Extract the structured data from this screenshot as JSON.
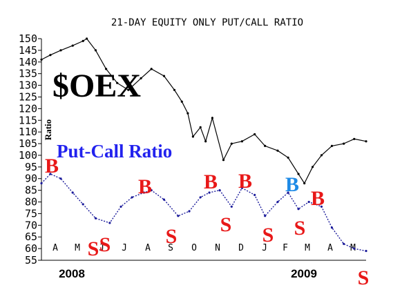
{
  "chart_data": {
    "type": "line",
    "title": "21-DAY EQUITY ONLY PUT/CALL RATIO",
    "ylabel": "Ratio",
    "ylim": [
      55,
      150
    ],
    "yticks": [
      150,
      145,
      140,
      135,
      130,
      125,
      120,
      115,
      110,
      105,
      100,
      95,
      90,
      85,
      80,
      75,
      70,
      65,
      60,
      55
    ],
    "month_labels": [
      "A",
      "M",
      "J",
      "J",
      "A",
      "S",
      "O",
      "N",
      "D",
      "J",
      "F",
      "M",
      "A",
      "M"
    ],
    "year_labels": [
      "2008",
      "2009"
    ],
    "x_range": [
      "2008-03-20",
      "2009-05-31"
    ],
    "series": [
      {
        "name": "$OEX",
        "color": "#000000",
        "x": [
          "2008-03-20",
          "2008-04-01",
          "2008-04-15",
          "2008-05-01",
          "2008-05-15",
          "2008-05-20",
          "2008-06-01",
          "2008-06-15",
          "2008-06-30",
          "2008-07-15",
          "2008-08-01",
          "2008-08-15",
          "2008-09-01",
          "2008-09-15",
          "2008-09-25",
          "2008-10-03",
          "2008-10-10",
          "2008-10-20",
          "2008-10-27",
          "2008-11-05",
          "2008-11-20",
          "2008-12-01",
          "2008-12-15",
          "2009-01-01",
          "2009-01-15",
          "2009-02-01",
          "2009-02-15",
          "2009-03-01",
          "2009-03-09",
          "2009-03-20",
          "2009-04-01",
          "2009-04-15",
          "2009-05-01",
          "2009-05-15",
          "2009-05-31"
        ],
        "values": [
          141,
          143,
          145,
          147,
          149,
          150,
          145,
          137,
          131,
          128,
          133,
          137,
          134,
          128,
          123,
          118,
          108,
          112,
          106,
          116,
          98,
          105,
          106,
          109,
          104,
          102,
          99,
          92,
          88,
          95,
          100,
          104,
          105,
          107,
          106
        ]
      },
      {
        "name": "Put-Call Ratio",
        "color": "#1a1a9a",
        "x": [
          "2008-03-20",
          "2008-04-01",
          "2008-04-15",
          "2008-05-01",
          "2008-05-15",
          "2008-06-01",
          "2008-06-20",
          "2008-07-05",
          "2008-07-20",
          "2008-08-05",
          "2008-08-15",
          "2008-09-01",
          "2008-09-20",
          "2008-10-05",
          "2008-10-20",
          "2008-11-01",
          "2008-11-15",
          "2008-12-01",
          "2008-12-15",
          "2009-01-01",
          "2009-01-15",
          "2009-02-01",
          "2009-02-15",
          "2009-03-01",
          "2009-03-15",
          "2009-04-01",
          "2009-04-15",
          "2009-05-01",
          "2009-05-15",
          "2009-05-31"
        ],
        "values": [
          88,
          92,
          90,
          84,
          79,
          73,
          71,
          78,
          82,
          84,
          85,
          81,
          74,
          76,
          82,
          84,
          85,
          78,
          86,
          83,
          74,
          80,
          84,
          77,
          80,
          78,
          69,
          62,
          60,
          59
        ]
      }
    ],
    "annotations": [
      {
        "text": "$OEX",
        "color": "#000000"
      },
      {
        "text": "Put-Call Ratio",
        "color": "#2222ee"
      }
    ],
    "signals": [
      {
        "text": "B",
        "color": "#e81818"
      },
      {
        "text": "S",
        "color": "#e81818"
      },
      {
        "text": "S",
        "color": "#e81818"
      },
      {
        "text": "B",
        "color": "#e81818"
      },
      {
        "text": "S",
        "color": "#e81818"
      },
      {
        "text": "B",
        "color": "#e81818"
      },
      {
        "text": "S",
        "color": "#e81818"
      },
      {
        "text": "B",
        "color": "#e81818"
      },
      {
        "text": "S",
        "color": "#e81818"
      },
      {
        "text": "B",
        "color": "#1e8ae6"
      },
      {
        "text": "S",
        "color": "#e81818"
      },
      {
        "text": "B",
        "color": "#e81818"
      },
      {
        "text": "S",
        "color": "#e81818"
      }
    ]
  }
}
